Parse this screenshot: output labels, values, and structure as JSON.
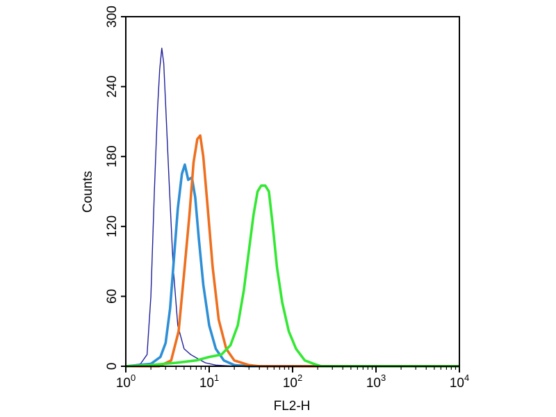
{
  "chart_data": {
    "type": "line",
    "xlabel": "FL2-H",
    "ylabel": "Counts",
    "x_scale": "log",
    "xlim": [
      1,
      10000
    ],
    "ylim": [
      0,
      300
    ],
    "grid": false,
    "legend": "none",
    "x_ticks": [
      {
        "base": "10",
        "exp": "0",
        "value": 1
      },
      {
        "base": "10",
        "exp": "1",
        "value": 10
      },
      {
        "base": "10",
        "exp": "2",
        "value": 100
      },
      {
        "base": "10",
        "exp": "3",
        "value": 1000
      },
      {
        "base": "10",
        "exp": "4",
        "value": 10000
      }
    ],
    "y_ticks": [
      "0",
      "60",
      "120",
      "180",
      "240",
      "300"
    ],
    "series": [
      {
        "color": "#1f1f99",
        "line_weight": "thin",
        "points": [
          [
            1,
            0
          ],
          [
            1.5,
            2
          ],
          [
            1.8,
            10
          ],
          [
            2.0,
            60
          ],
          [
            2.2,
            150
          ],
          [
            2.4,
            220
          ],
          [
            2.55,
            255
          ],
          [
            2.7,
            273
          ],
          [
            2.85,
            260
          ],
          [
            3.0,
            225
          ],
          [
            3.3,
            160
          ],
          [
            3.7,
            85
          ],
          [
            4.2,
            35
          ],
          [
            5.0,
            15
          ],
          [
            6.0,
            10
          ],
          [
            7.5,
            6
          ],
          [
            9,
            3
          ],
          [
            12,
            1
          ],
          [
            20,
            0
          ],
          [
            10000,
            0
          ]
        ]
      },
      {
        "color": "#2e8fd6",
        "line_weight": "thick",
        "points": [
          [
            1,
            0
          ],
          [
            2.0,
            2
          ],
          [
            2.6,
            8
          ],
          [
            3.0,
            20
          ],
          [
            3.4,
            50
          ],
          [
            3.8,
            95
          ],
          [
            4.2,
            135
          ],
          [
            4.7,
            165
          ],
          [
            5.1,
            173
          ],
          [
            5.6,
            160
          ],
          [
            6.2,
            162
          ],
          [
            6.8,
            145
          ],
          [
            7.5,
            110
          ],
          [
            8.5,
            70
          ],
          [
            10,
            35
          ],
          [
            12,
            15
          ],
          [
            15,
            5
          ],
          [
            20,
            1
          ],
          [
            30,
            0
          ],
          [
            10000,
            0
          ]
        ]
      },
      {
        "color": "#ee6f1e",
        "line_weight": "thick",
        "points": [
          [
            1,
            0
          ],
          [
            2.5,
            0
          ],
          [
            3.5,
            5
          ],
          [
            4.3,
            30
          ],
          [
            5.0,
            80
          ],
          [
            5.8,
            130
          ],
          [
            6.5,
            175
          ],
          [
            7.2,
            195
          ],
          [
            7.8,
            198
          ],
          [
            8.5,
            180
          ],
          [
            9.5,
            140
          ],
          [
            11,
            85
          ],
          [
            13,
            40
          ],
          [
            16,
            15
          ],
          [
            20,
            5
          ],
          [
            30,
            1
          ],
          [
            40,
            0
          ],
          [
            10000,
            0
          ]
        ]
      },
      {
        "color": "#33e833",
        "line_weight": "thick",
        "points": [
          [
            1,
            0
          ],
          [
            2,
            1
          ],
          [
            4,
            3
          ],
          [
            7,
            5
          ],
          [
            10,
            8
          ],
          [
            14,
            10
          ],
          [
            18,
            18
          ],
          [
            22,
            35
          ],
          [
            26,
            65
          ],
          [
            30,
            100
          ],
          [
            34,
            130
          ],
          [
            38,
            150
          ],
          [
            42,
            155
          ],
          [
            47,
            155
          ],
          [
            52,
            150
          ],
          [
            58,
            120
          ],
          [
            65,
            85
          ],
          [
            75,
            55
          ],
          [
            90,
            30
          ],
          [
            110,
            15
          ],
          [
            140,
            5
          ],
          [
            180,
            2
          ],
          [
            220,
            0
          ],
          [
            10000,
            0
          ]
        ]
      }
    ]
  }
}
